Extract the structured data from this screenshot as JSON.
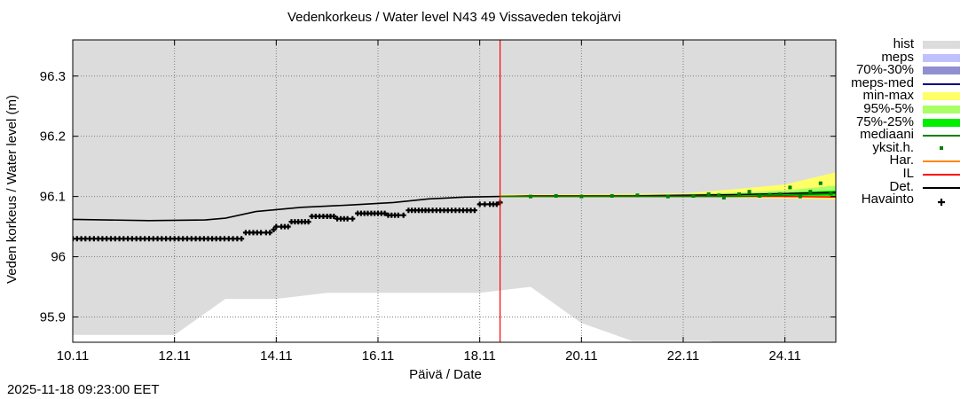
{
  "title": "Vedenkorkeus  /  Water level    N43  49 Vissaveden tekojärvi",
  "timestamp": "2025-11-18 09:23:00 EET",
  "chart_data": {
    "type": "line",
    "title": "Vedenkorkeus  /  Water level    N43  49 Vissaveden tekojärvi",
    "xlabel": "Päivä / Date",
    "ylabel": "Veden korkeus / Water level (m)",
    "x_unit": "days since 10.11",
    "xlim": [
      0,
      15
    ],
    "ylim": [
      95.858,
      96.36
    ],
    "yticks": [
      95.9,
      96,
      96.1,
      96.2,
      96.3
    ],
    "ytick_labels": [
      "95.9",
      "96",
      "96.1",
      "96.2",
      "96.3"
    ],
    "xticks": [
      0,
      2,
      4,
      6,
      8,
      10,
      12,
      14
    ],
    "xtick_labels": [
      "10.11",
      "12.11",
      "14.11",
      "16.11",
      "18.11",
      "20.11",
      "22.11",
      "24.11"
    ],
    "grid": true,
    "now_line_x": 8.4,
    "hist_band": {
      "x": [
        0,
        2.0,
        3.0,
        4.0,
        5.0,
        8.0,
        9.0,
        10.0,
        11.0,
        12.5,
        14.0,
        15.0
      ],
      "lower": [
        95.87,
        95.87,
        95.93,
        95.93,
        95.94,
        95.94,
        95.95,
        95.89,
        95.86,
        95.86,
        95.84,
        95.86
      ],
      "upper": [
        96.36,
        96.36,
        96.36,
        96.36,
        96.36,
        96.36,
        96.36,
        96.36,
        96.36,
        96.36,
        96.36,
        96.36
      ]
    },
    "min_max_band": {
      "x": [
        8.4,
        12.0,
        13.0,
        14.0,
        15.0
      ],
      "lower": [
        96.1,
        96.1,
        96.098,
        96.097,
        96.095
      ],
      "upper": [
        96.103,
        96.105,
        96.112,
        96.12,
        96.14
      ]
    },
    "p95_5_band": {
      "x": [
        8.4,
        12.0,
        13.0,
        14.0,
        15.0
      ],
      "lower": [
        96.1,
        96.1,
        96.099,
        96.099,
        96.098
      ],
      "upper": [
        96.102,
        96.104,
        96.106,
        96.11,
        96.118
      ]
    },
    "p75_25_band": {
      "x": [
        8.4,
        12.0,
        13.0,
        14.0,
        15.0
      ],
      "lower": [
        96.1,
        96.1,
        96.1,
        96.1,
        96.1
      ],
      "upper": [
        96.101,
        96.102,
        96.104,
        96.106,
        96.11
      ]
    },
    "series": [
      {
        "name": "Det.",
        "color": "#000000",
        "x": [
          0,
          1.5,
          2.6,
          3.0,
          3.6,
          4.5,
          5.5,
          6.3,
          7.0,
          7.7,
          8.4,
          9.0,
          11.0,
          13.0,
          15.0
        ],
        "y": [
          96.062,
          96.06,
          96.061,
          96.064,
          96.075,
          96.082,
          96.086,
          96.09,
          96.096,
          96.099,
          96.1,
          96.101,
          96.101,
          96.103,
          96.107
        ]
      },
      {
        "name": "Har.",
        "color": "#ff8800",
        "x": [
          8.4,
          11.0,
          13.0,
          15.0
        ],
        "y": [
          96.1,
          96.1,
          96.1,
          96.1
        ]
      },
      {
        "name": "IL",
        "color": "#ff0000",
        "x": [
          8.4,
          11.0,
          13.0,
          14.0,
          15.0
        ],
        "y": [
          96.1,
          96.1,
          96.1,
          96.1,
          96.099
        ]
      },
      {
        "name": "mediaani",
        "color": "#008000",
        "x": [
          8.4,
          11.0,
          13.0,
          14.0,
          15.0
        ],
        "y": [
          96.1,
          96.1,
          96.1,
          96.102,
          96.105
        ]
      }
    ],
    "observations": {
      "name": "Havainto",
      "x": [
        0,
        0.5,
        1.0,
        1.5,
        2.0,
        2.5,
        2.9,
        3.4,
        3.7,
        3.8,
        3.95,
        4.0,
        4.1,
        4.3,
        4.5,
        4.7,
        5.0,
        5.2,
        5.4,
        5.6,
        5.8,
        6.0,
        6.2,
        6.4,
        6.6,
        6.8,
        7.0,
        7.3,
        7.6,
        7.9,
        8.0,
        8.2,
        8.4
      ],
      "y": [
        96.03,
        96.03,
        96.03,
        96.03,
        96.03,
        96.03,
        96.03,
        96.04,
        96.04,
        96.04,
        96.045,
        96.05,
        96.05,
        96.058,
        96.058,
        96.067,
        96.067,
        96.063,
        96.063,
        96.072,
        96.072,
        96.072,
        96.069,
        96.069,
        96.077,
        96.077,
        96.077,
        96.077,
        96.077,
        96.077,
        96.087,
        96.087,
        96.09
      ]
    },
    "single_members": {
      "name": "yksit.h.",
      "x": [
        9.0,
        9.5,
        10.0,
        10.6,
        11.1,
        11.7,
        12.2,
        12.5,
        12.7,
        12.8,
        13.1,
        13.3,
        13.5,
        13.7,
        13.9,
        14.1,
        14.3,
        14.5,
        14.7,
        14.9
      ],
      "y": [
        96.1,
        96.101,
        96.1,
        96.101,
        96.102,
        96.1,
        96.101,
        96.104,
        96.102,
        96.098,
        96.104,
        96.108,
        96.101,
        96.103,
        96.104,
        96.115,
        96.1,
        96.108,
        96.122,
        96.105
      ]
    }
  },
  "legend": [
    {
      "label": "hist",
      "swatch": "band",
      "color": "#dcdcdc"
    },
    {
      "label": "meps",
      "swatch": "band",
      "color": "#c0c0ff"
    },
    {
      "label": "70%-30%",
      "swatch": "band",
      "color": "#9090d0"
    },
    {
      "label": "meps-med",
      "swatch": "line",
      "color": "#000080"
    },
    {
      "label": "min-max",
      "swatch": "band",
      "color": "#ffff66"
    },
    {
      "label": "95%-5%",
      "swatch": "band",
      "color": "#aaff66"
    },
    {
      "label": "75%-25%",
      "swatch": "band",
      "color": "#00ee00"
    },
    {
      "label": "mediaani",
      "swatch": "line",
      "color": "#008000"
    },
    {
      "label": "yksit.h.",
      "swatch": "dot",
      "color": "#008000"
    },
    {
      "label": "Har.",
      "swatch": "line",
      "color": "#ff8800"
    },
    {
      "label": "IL",
      "swatch": "line",
      "color": "#ff0000"
    },
    {
      "label": "Det.",
      "swatch": "line",
      "color": "#000000"
    },
    {
      "label": "Havainto",
      "swatch": "cross",
      "color": "#000000"
    }
  ]
}
